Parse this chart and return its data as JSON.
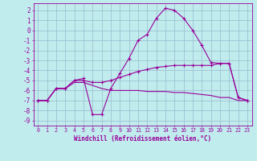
{
  "bg_color": "#c0ecee",
  "grid_color": "#99bbcc",
  "line_color": "#990099",
  "xlabel": "Windchill (Refroidissement éolien,°C)",
  "xlim": [
    -0.5,
    23.5
  ],
  "ylim": [
    -9.5,
    2.7
  ],
  "xticks": [
    0,
    1,
    2,
    3,
    4,
    5,
    6,
    7,
    8,
    9,
    10,
    11,
    12,
    13,
    14,
    15,
    16,
    17,
    18,
    19,
    20,
    21,
    22,
    23
  ],
  "yticks": [
    2,
    1,
    0,
    -1,
    -2,
    -3,
    -4,
    -5,
    -6,
    -7,
    -8,
    -9
  ],
  "curve1_x": [
    0,
    1,
    2,
    3,
    4,
    5,
    6,
    7,
    8,
    9,
    10,
    11,
    12,
    13,
    14,
    15,
    16,
    17,
    18,
    19,
    20,
    21,
    22,
    23
  ],
  "curve1_y": [
    -7.0,
    -7.0,
    -5.8,
    -5.8,
    -5.0,
    -4.8,
    -8.4,
    -8.4,
    -5.8,
    -4.3,
    -2.8,
    -1.0,
    -0.4,
    1.2,
    2.2,
    2.0,
    1.2,
    0.0,
    -1.5,
    -3.2,
    -3.3,
    -3.3,
    -6.7,
    -7.0
  ],
  "curve2_x": [
    0,
    1,
    2,
    3,
    4,
    5,
    6,
    7,
    8,
    9,
    10,
    11,
    12,
    13,
    14,
    15,
    16,
    17,
    18,
    19,
    20,
    21,
    22,
    23
  ],
  "curve2_y": [
    -7.0,
    -7.0,
    -5.8,
    -5.8,
    -5.0,
    -5.0,
    -5.2,
    -5.2,
    -5.0,
    -4.7,
    -4.4,
    -4.1,
    -3.9,
    -3.7,
    -3.6,
    -3.5,
    -3.5,
    -3.5,
    -3.5,
    -3.5,
    -3.3,
    -3.3,
    -6.7,
    -7.0
  ],
  "curve3_x": [
    0,
    1,
    2,
    3,
    4,
    5,
    6,
    7,
    8,
    9,
    10,
    11,
    12,
    13,
    14,
    15,
    16,
    17,
    18,
    19,
    20,
    21,
    22,
    23
  ],
  "curve3_y": [
    -7.0,
    -7.0,
    -5.8,
    -5.8,
    -5.2,
    -5.2,
    -5.5,
    -5.8,
    -6.0,
    -6.0,
    -6.0,
    -6.0,
    -6.1,
    -6.1,
    -6.1,
    -6.2,
    -6.2,
    -6.3,
    -6.4,
    -6.5,
    -6.7,
    -6.7,
    -7.0,
    -7.0
  ],
  "yticklabels": [
    "2",
    "1",
    "0",
    "-1",
    "-2",
    "-3",
    "-4",
    "-5",
    "-6",
    "-7",
    "-8",
    "-9"
  ],
  "xticklabels": [
    "0",
    "1",
    "2",
    "3",
    "4",
    "5",
    "6",
    "7",
    "8",
    "9",
    "10",
    "11",
    "12",
    "13",
    "14",
    "15",
    "16",
    "17",
    "18",
    "19",
    "20",
    "21",
    "22",
    "23"
  ]
}
